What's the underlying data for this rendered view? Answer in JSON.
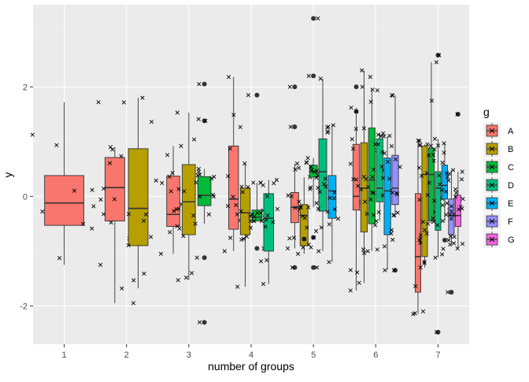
{
  "chart_data": {
    "type": "boxplot",
    "xlabel": "number of groups",
    "ylabel": "y",
    "x_ticks": [
      "1",
      "2",
      "3",
      "4",
      "5",
      "6",
      "7"
    ],
    "y_ticks": [
      -2,
      0,
      2
    ],
    "ylim": [
      -2.7,
      3.5
    ],
    "grid": true,
    "legend": {
      "title": "g",
      "placement": "right"
    },
    "colors": {
      "A": "#F8766D",
      "B": "#B79F00",
      "C": "#00BA38",
      "D": "#00BF7D",
      "E": "#00B0F6",
      "F": "#9590FF",
      "G": "#F564E3"
    },
    "groups": [
      "A",
      "B",
      "C",
      "D",
      "E",
      "F",
      "G"
    ],
    "series": [
      {
        "x": 1,
        "boxes": [
          {
            "g": "A",
            "stats": [
              -1.25,
              -0.53,
              -0.12,
              0.38,
              1.72
            ],
            "outliers": []
          }
        ]
      },
      {
        "x": 2,
        "boxes": [
          {
            "g": "A",
            "stats": [
              -1.95,
              -0.45,
              0.16,
              0.71,
              0.9
            ],
            "outliers": []
          },
          {
            "g": "B",
            "stats": [
              -1.68,
              -0.9,
              -0.22,
              0.87,
              1.8
            ],
            "outliers": []
          }
        ]
      },
      {
        "x": 3,
        "boxes": [
          {
            "g": "A",
            "stats": [
              -1.05,
              -0.55,
              -0.33,
              0.37,
              0.92
            ],
            "outliers": []
          },
          {
            "g": "B",
            "stats": [
              -1.53,
              -0.7,
              -0.1,
              0.58,
              1.53
            ],
            "outliers": []
          },
          {
            "g": "C",
            "stats": [
              -0.5,
              -0.17,
              0.02,
              0.36,
              0.5
            ],
            "outliers": [
              2.05,
              1.38,
              -1.12,
              -2.3
            ]
          }
        ]
      },
      {
        "x": 4,
        "boxes": [
          {
            "g": "A",
            "stats": [
              -1.0,
              -0.6,
              -0.05,
              0.92,
              2.18
            ],
            "outliers": []
          },
          {
            "g": "B",
            "stats": [
              -1.65,
              -0.7,
              -0.3,
              0.15,
              0.6
            ],
            "outliers": []
          },
          {
            "g": "C",
            "stats": [
              -0.45,
              -0.45,
              -0.38,
              -0.25,
              0.25
            ],
            "outliers": [
              1.85,
              -0.95
            ]
          },
          {
            "g": "D",
            "stats": [
              -1.6,
              -1.0,
              -0.4,
              0.05,
              0.3
            ],
            "outliers": []
          }
        ]
      },
      {
        "x": 5,
        "boxes": [
          {
            "g": "A",
            "stats": [
              -0.95,
              -0.48,
              -0.2,
              0.07,
              0.6
            ],
            "outliers": [
              1.27,
              2.0,
              -1.3
            ]
          },
          {
            "g": "B",
            "stats": [
              -1.05,
              -0.9,
              -0.35,
              -0.15,
              0.35
            ],
            "outliers": [
              -0.78
            ]
          },
          {
            "g": "C",
            "stats": [
              -0.2,
              0.35,
              0.45,
              0.57,
              0.7
            ],
            "outliers": [
              3.25,
              2.2,
              -0.75,
              -1.3
            ]
          },
          {
            "g": "D",
            "stats": [
              -1.0,
              -0.27,
              0.45,
              1.05,
              2.15
            ],
            "outliers": []
          },
          {
            "g": "E",
            "stats": [
              -1.2,
              -0.4,
              0.1,
              0.38,
              1.3
            ],
            "outliers": []
          }
        ]
      },
      {
        "x": 6,
        "boxes": [
          {
            "g": "A",
            "stats": [
              -1.72,
              -0.25,
              0.0,
              0.95,
              1.62
            ],
            "outliers": [
              2.0,
              1.55
            ]
          },
          {
            "g": "B",
            "stats": [
              -1.58,
              -0.65,
              0.15,
              0.98,
              2.3
            ],
            "outliers": []
          },
          {
            "g": "C",
            "stats": [
              -1.0,
              -0.5,
              0.3,
              1.25,
              1.95
            ],
            "outliers": []
          },
          {
            "g": "D",
            "stats": [
              -0.45,
              -0.1,
              0.15,
              1.05,
              1.15
            ],
            "outliers": []
          },
          {
            "g": "E",
            "stats": [
              -1.35,
              -0.7,
              0.1,
              0.7,
              1.1
            ],
            "outliers": []
          },
          {
            "g": "F",
            "stats": [
              -0.35,
              -0.15,
              0.15,
              0.75,
              1.85
            ],
            "outliers": [
              -1.35
            ]
          }
        ]
      },
      {
        "x": 7,
        "boxes": [
          {
            "g": "A",
            "stats": [
              -2.15,
              -1.75,
              -1.1,
              0.05,
              1.02
            ],
            "outliers": []
          },
          {
            "g": "B",
            "stats": [
              -1.3,
              -1.1,
              0.4,
              0.92,
              0.95
            ],
            "outliers": []
          },
          {
            "g": "C",
            "stats": [
              -0.5,
              -0.45,
              0.4,
              0.88,
              2.45
            ],
            "outliers": []
          },
          {
            "g": "D",
            "stats": [
              -1.12,
              -0.62,
              0.15,
              0.45,
              1.05
            ],
            "outliers": [
              2.58,
              -2.48
            ]
          },
          {
            "g": "E",
            "stats": [
              -0.45,
              -0.05,
              0.2,
              0.57,
              0.97
            ],
            "outliers": [
              -0.8
            ]
          },
          {
            "g": "F",
            "stats": [
              -0.88,
              -0.7,
              -0.35,
              -0.05,
              0.48
            ],
            "outliers": [
              -1.75
            ]
          },
          {
            "g": "G",
            "stats": [
              -0.95,
              -0.55,
              -0.35,
              0.02,
              0.45
            ],
            "outliers": [
              1.5
            ]
          }
        ]
      }
    ]
  }
}
